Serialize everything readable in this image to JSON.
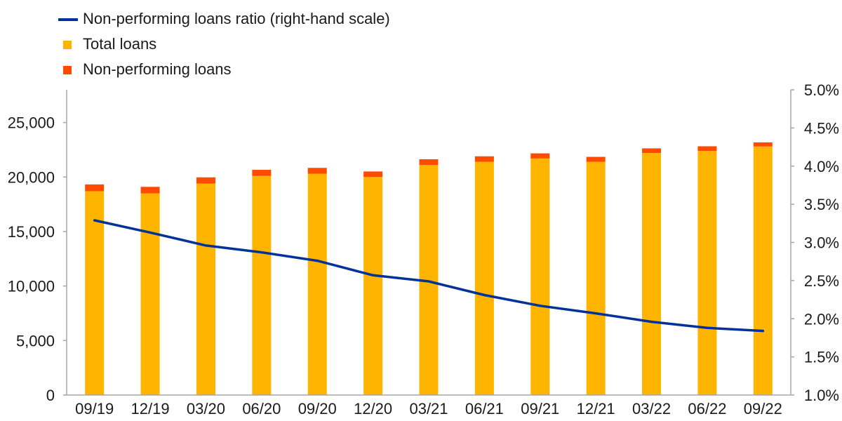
{
  "chart_data": {
    "type": "bar",
    "categories": [
      "09/19",
      "12/19",
      "03/20",
      "06/20",
      "09/20",
      "12/20",
      "03/21",
      "06/21",
      "09/21",
      "12/21",
      "03/22",
      "06/22",
      "09/22"
    ],
    "series": [
      {
        "name": "Total loans",
        "kind": "bar-stacked",
        "color": "#FFB400",
        "values": [
          18700,
          18500,
          19400,
          20100,
          20300,
          20000,
          21100,
          21400,
          21700,
          21400,
          22200,
          22400,
          22800
        ]
      },
      {
        "name": "Non-performing loans",
        "kind": "bar-stacked",
        "color": "#FF4B00",
        "values": [
          620,
          600,
          570,
          560,
          540,
          510,
          530,
          500,
          470,
          450,
          430,
          420,
          380
        ]
      },
      {
        "name": "Non-performing loans ratio (right-hand scale)",
        "kind": "line",
        "axis": "right",
        "color": "#003299",
        "values": [
          3.29,
          3.13,
          2.96,
          2.87,
          2.76,
          2.57,
          2.49,
          2.31,
          2.17,
          2.07,
          1.96,
          1.88,
          1.84
        ]
      }
    ],
    "y_left": {
      "ylim": [
        0,
        28000
      ],
      "ticks": [
        0,
        5000,
        10000,
        15000,
        20000,
        25000
      ],
      "tick_labels": [
        "0",
        "5,000",
        "10,000",
        "15,000",
        "20,000",
        "25,000"
      ]
    },
    "y_right": {
      "ylim": [
        1.0,
        5.0
      ],
      "ticks": [
        1.0,
        1.5,
        2.0,
        2.5,
        3.0,
        3.5,
        4.0,
        4.5,
        5.0
      ],
      "tick_labels": [
        "1.0%",
        "1.5%",
        "2.0%",
        "2.5%",
        "3.0%",
        "3.5%",
        "4.0%",
        "4.5%",
        "5.0%"
      ]
    },
    "title": "",
    "xlabel": "",
    "ylabel": "",
    "grid": false,
    "legend_position": "top-left",
    "axis_color": "#A6A6A6",
    "legend": [
      {
        "label": "Non-performing loans ratio (right-hand scale)",
        "color": "#003299",
        "marker": "line"
      },
      {
        "label": "Total loans",
        "color": "#FFB400",
        "marker": "square"
      },
      {
        "label": "Non-performing loans",
        "color": "#FF4B00",
        "marker": "square"
      }
    ]
  }
}
